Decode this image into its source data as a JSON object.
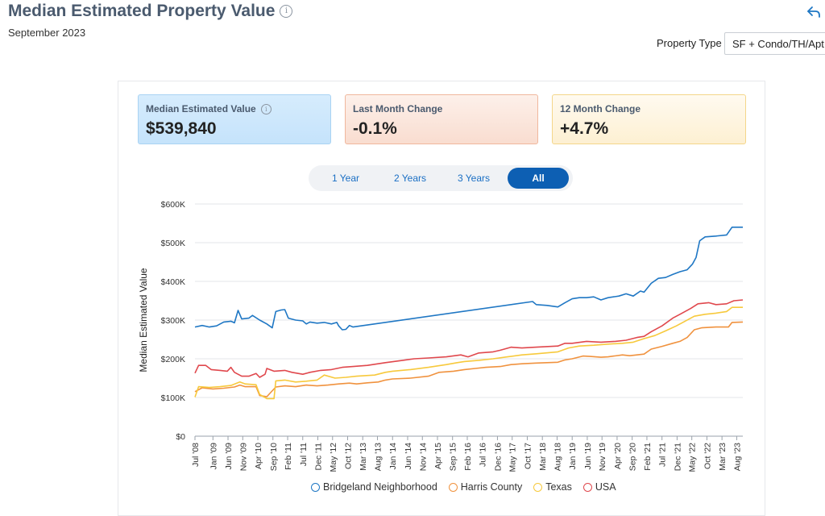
{
  "header": {
    "title": "Median Estimated Property Value",
    "subtitle": "September 2023",
    "property_type_label": "Property Type",
    "property_type_value": "SF + Condo/TH/Apt"
  },
  "cards": [
    {
      "label": "Median Estimated Value",
      "value": "$539,840"
    },
    {
      "label": "Last Month Change",
      "value": "-0.1%"
    },
    {
      "label": "12 Month Change",
      "value": "+4.7%"
    }
  ],
  "range_buttons": [
    {
      "label": "1 Year"
    },
    {
      "label": "2 Years"
    },
    {
      "label": "3 Years"
    },
    {
      "label": "All",
      "active": true
    }
  ],
  "chart_data": {
    "type": "line",
    "ylabel": "Median Estimated Value",
    "ylim": [
      0,
      600000
    ],
    "yticks": [
      "$0",
      "$100K",
      "$200K",
      "$300K",
      "$400K",
      "$500K",
      "$600K"
    ],
    "xlim": [
      2008.5,
      2023.75
    ],
    "xticks": [
      {
        "label": "Jul '08",
        "x": 2008.5
      },
      {
        "label": "Jan '09",
        "x": 2009.0
      },
      {
        "label": "Jun '09",
        "x": 2009.42
      },
      {
        "label": "Nov '09",
        "x": 2009.83
      },
      {
        "label": "Apr '10",
        "x": 2010.25
      },
      {
        "label": "Sep '10",
        "x": 2010.67
      },
      {
        "label": "Feb '11",
        "x": 2011.08
      },
      {
        "label": "Jul '11",
        "x": 2011.5
      },
      {
        "label": "Dec '11",
        "x": 2011.92
      },
      {
        "label": "May '12",
        "x": 2012.33
      },
      {
        "label": "Oct '12",
        "x": 2012.75
      },
      {
        "label": "Mar '13",
        "x": 2013.17
      },
      {
        "label": "Aug '13",
        "x": 2013.58
      },
      {
        "label": "Jan '14",
        "x": 2014.0
      },
      {
        "label": "Jun '14",
        "x": 2014.42
      },
      {
        "label": "Nov '14",
        "x": 2014.83
      },
      {
        "label": "Apr '15",
        "x": 2015.25
      },
      {
        "label": "Sep '15",
        "x": 2015.67
      },
      {
        "label": "Feb '16",
        "x": 2016.08
      },
      {
        "label": "Jul '16",
        "x": 2016.5
      },
      {
        "label": "Dec '16",
        "x": 2016.92
      },
      {
        "label": "May '17",
        "x": 2017.33
      },
      {
        "label": "Oct '17",
        "x": 2017.75
      },
      {
        "label": "Mar '18",
        "x": 2018.17
      },
      {
        "label": "Aug '18",
        "x": 2018.58
      },
      {
        "label": "Jan '19",
        "x": 2019.0
      },
      {
        "label": "Jun '19",
        "x": 2019.42
      },
      {
        "label": "Nov '19",
        "x": 2019.83
      },
      {
        "label": "Apr '20",
        "x": 2020.25
      },
      {
        "label": "Sep '20",
        "x": 2020.67
      },
      {
        "label": "Feb '21",
        "x": 2021.08
      },
      {
        "label": "Jul '21",
        "x": 2021.5
      },
      {
        "label": "Dec '21",
        "x": 2021.92
      },
      {
        "label": "May '22",
        "x": 2022.33
      },
      {
        "label": "Oct '22",
        "x": 2022.75
      },
      {
        "label": "Mar '23",
        "x": 2023.17
      },
      {
        "label": "Aug '23",
        "x": 2023.58
      }
    ],
    "legend_position": "bottom",
    "series": [
      {
        "name": "Bridgeland Neighborhood",
        "color": "#1f77c4",
        "points": [
          [
            2008.5,
            282000
          ],
          [
            2008.7,
            286000
          ],
          [
            2008.9,
            282000
          ],
          [
            2009.1,
            285000
          ],
          [
            2009.3,
            295000
          ],
          [
            2009.5,
            297000
          ],
          [
            2009.6,
            293000
          ],
          [
            2009.7,
            325000
          ],
          [
            2009.8,
            303000
          ],
          [
            2010.0,
            305000
          ],
          [
            2010.1,
            312000
          ],
          [
            2010.3,
            300000
          ],
          [
            2010.5,
            290000
          ],
          [
            2010.65,
            280000
          ],
          [
            2010.75,
            322000
          ],
          [
            2010.9,
            326000
          ],
          [
            2011.0,
            327000
          ],
          [
            2011.1,
            305000
          ],
          [
            2011.3,
            300000
          ],
          [
            2011.5,
            298000
          ],
          [
            2011.6,
            290000
          ],
          [
            2011.7,
            295000
          ],
          [
            2011.9,
            292000
          ],
          [
            2012.1,
            294000
          ],
          [
            2012.3,
            290000
          ],
          [
            2012.45,
            294000
          ],
          [
            2012.5,
            285000
          ],
          [
            2012.6,
            275000
          ],
          [
            2012.7,
            276000
          ],
          [
            2012.8,
            286000
          ],
          [
            2012.9,
            282000
          ],
          [
            2017.9,
            348000
          ],
          [
            2018.0,
            340000
          ],
          [
            2018.3,
            338000
          ],
          [
            2018.6,
            334000
          ],
          [
            2018.8,
            345000
          ],
          [
            2019.0,
            355000
          ],
          [
            2019.2,
            358000
          ],
          [
            2019.4,
            358000
          ],
          [
            2019.6,
            360000
          ],
          [
            2019.8,
            352000
          ],
          [
            2020.0,
            358000
          ],
          [
            2020.3,
            362000
          ],
          [
            2020.5,
            368000
          ],
          [
            2020.7,
            362000
          ],
          [
            2020.9,
            375000
          ],
          [
            2021.0,
            372000
          ],
          [
            2021.2,
            395000
          ],
          [
            2021.4,
            408000
          ],
          [
            2021.6,
            410000
          ],
          [
            2021.8,
            418000
          ],
          [
            2022.0,
            425000
          ],
          [
            2022.2,
            430000
          ],
          [
            2022.35,
            445000
          ],
          [
            2022.45,
            462000
          ],
          [
            2022.55,
            505000
          ],
          [
            2022.7,
            515000
          ],
          [
            2023.0,
            517000
          ],
          [
            2023.3,
            520000
          ],
          [
            2023.45,
            540000
          ],
          [
            2023.75,
            540000
          ]
        ]
      },
      {
        "name": "Harris County",
        "color": "#f0923e",
        "points": [
          [
            2008.5,
            115000
          ],
          [
            2008.7,
            125000
          ],
          [
            2009.0,
            122000
          ],
          [
            2009.3,
            124000
          ],
          [
            2009.6,
            127000
          ],
          [
            2009.75,
            132000
          ],
          [
            2009.9,
            128000
          ],
          [
            2010.2,
            128000
          ],
          [
            2010.3,
            105000
          ],
          [
            2010.5,
            102000
          ],
          [
            2010.75,
            127000
          ],
          [
            2011.0,
            130000
          ],
          [
            2011.3,
            128000
          ],
          [
            2011.6,
            132000
          ],
          [
            2011.9,
            130000
          ],
          [
            2012.2,
            132000
          ],
          [
            2012.5,
            135000
          ],
          [
            2012.8,
            137000
          ],
          [
            2013.0,
            135000
          ],
          [
            2013.3,
            138000
          ],
          [
            2013.6,
            140000
          ],
          [
            2013.8,
            145000
          ],
          [
            2014.0,
            148000
          ],
          [
            2014.5,
            150000
          ],
          [
            2015.0,
            155000
          ],
          [
            2015.3,
            165000
          ],
          [
            2015.7,
            168000
          ],
          [
            2016.0,
            172000
          ],
          [
            2016.3,
            175000
          ],
          [
            2016.6,
            178000
          ],
          [
            2017.0,
            180000
          ],
          [
            2017.3,
            185000
          ],
          [
            2017.6,
            187000
          ],
          [
            2018.0,
            189000
          ],
          [
            2018.6,
            191000
          ],
          [
            2018.8,
            197000
          ],
          [
            2019.0,
            200000
          ],
          [
            2019.3,
            207000
          ],
          [
            2019.5,
            206000
          ],
          [
            2019.8,
            204000
          ],
          [
            2020.0,
            205000
          ],
          [
            2020.4,
            210000
          ],
          [
            2020.6,
            208000
          ],
          [
            2020.8,
            210000
          ],
          [
            2021.0,
            212000
          ],
          [
            2021.2,
            225000
          ],
          [
            2021.5,
            232000
          ],
          [
            2021.8,
            240000
          ],
          [
            2022.0,
            245000
          ],
          [
            2022.2,
            255000
          ],
          [
            2022.4,
            275000
          ],
          [
            2022.6,
            280000
          ],
          [
            2023.0,
            282000
          ],
          [
            2023.35,
            282000
          ],
          [
            2023.45,
            294000
          ],
          [
            2023.75,
            295000
          ]
        ]
      },
      {
        "name": "Texas",
        "color": "#f7c93c",
        "points": [
          [
            2008.5,
            101000
          ],
          [
            2008.6,
            128000
          ],
          [
            2008.9,
            126000
          ],
          [
            2009.2,
            128000
          ],
          [
            2009.5,
            131000
          ],
          [
            2009.75,
            140000
          ],
          [
            2009.9,
            135000
          ],
          [
            2010.2,
            133000
          ],
          [
            2010.3,
            108000
          ],
          [
            2010.5,
            97000
          ],
          [
            2010.7,
            97000
          ],
          [
            2010.75,
            143000
          ],
          [
            2011.0,
            145000
          ],
          [
            2011.3,
            140000
          ],
          [
            2011.6,
            142000
          ],
          [
            2011.9,
            145000
          ],
          [
            2012.1,
            158000
          ],
          [
            2012.4,
            150000
          ],
          [
            2012.7,
            152000
          ],
          [
            2013.0,
            155000
          ],
          [
            2013.5,
            158000
          ],
          [
            2013.8,
            165000
          ],
          [
            2014.0,
            168000
          ],
          [
            2014.5,
            172000
          ],
          [
            2015.0,
            178000
          ],
          [
            2015.5,
            185000
          ],
          [
            2015.8,
            190000
          ],
          [
            2016.0,
            193000
          ],
          [
            2016.4,
            196000
          ],
          [
            2016.8,
            200000
          ],
          [
            2017.2,
            205000
          ],
          [
            2017.6,
            210000
          ],
          [
            2018.0,
            213000
          ],
          [
            2018.6,
            218000
          ],
          [
            2018.9,
            228000
          ],
          [
            2019.2,
            233000
          ],
          [
            2019.6,
            235000
          ],
          [
            2020.0,
            238000
          ],
          [
            2020.4,
            240000
          ],
          [
            2020.7,
            243000
          ],
          [
            2021.0,
            252000
          ],
          [
            2021.3,
            260000
          ],
          [
            2021.6,
            272000
          ],
          [
            2021.9,
            285000
          ],
          [
            2022.1,
            295000
          ],
          [
            2022.4,
            310000
          ],
          [
            2022.7,
            315000
          ],
          [
            2023.0,
            318000
          ],
          [
            2023.3,
            322000
          ],
          [
            2023.45,
            333000
          ],
          [
            2023.75,
            333000
          ]
        ]
      },
      {
        "name": "USA",
        "color": "#e0484d",
        "points": [
          [
            2008.5,
            163000
          ],
          [
            2008.6,
            183000
          ],
          [
            2008.8,
            183000
          ],
          [
            2008.95,
            172000
          ],
          [
            2009.2,
            170000
          ],
          [
            2009.4,
            168000
          ],
          [
            2009.5,
            178000
          ],
          [
            2009.6,
            165000
          ],
          [
            2009.8,
            155000
          ],
          [
            2010.0,
            155000
          ],
          [
            2010.2,
            162000
          ],
          [
            2010.3,
            152000
          ],
          [
            2010.45,
            160000
          ],
          [
            2010.5,
            175000
          ],
          [
            2010.7,
            168000
          ],
          [
            2011.0,
            170000
          ],
          [
            2011.2,
            165000
          ],
          [
            2011.5,
            160000
          ],
          [
            2011.7,
            165000
          ],
          [
            2012.0,
            170000
          ],
          [
            2012.3,
            172000
          ],
          [
            2012.6,
            178000
          ],
          [
            2012.9,
            180000
          ],
          [
            2013.3,
            183000
          ],
          [
            2013.8,
            190000
          ],
          [
            2014.2,
            195000
          ],
          [
            2014.6,
            200000
          ],
          [
            2015.0,
            202000
          ],
          [
            2015.5,
            205000
          ],
          [
            2015.9,
            210000
          ],
          [
            2016.1,
            205000
          ],
          [
            2016.4,
            215000
          ],
          [
            2016.8,
            218000
          ],
          [
            2017.0,
            222000
          ],
          [
            2017.3,
            230000
          ],
          [
            2017.6,
            228000
          ],
          [
            2018.0,
            230000
          ],
          [
            2018.6,
            233000
          ],
          [
            2018.8,
            240000
          ],
          [
            2019.0,
            240000
          ],
          [
            2019.4,
            245000
          ],
          [
            2019.8,
            243000
          ],
          [
            2020.2,
            245000
          ],
          [
            2020.5,
            248000
          ],
          [
            2020.8,
            255000
          ],
          [
            2021.0,
            258000
          ],
          [
            2021.2,
            270000
          ],
          [
            2021.5,
            285000
          ],
          [
            2021.8,
            305000
          ],
          [
            2022.0,
            315000
          ],
          [
            2022.3,
            330000
          ],
          [
            2022.5,
            342000
          ],
          [
            2022.8,
            345000
          ],
          [
            2023.0,
            340000
          ],
          [
            2023.3,
            342000
          ],
          [
            2023.5,
            350000
          ],
          [
            2023.75,
            352000
          ]
        ]
      }
    ]
  }
}
